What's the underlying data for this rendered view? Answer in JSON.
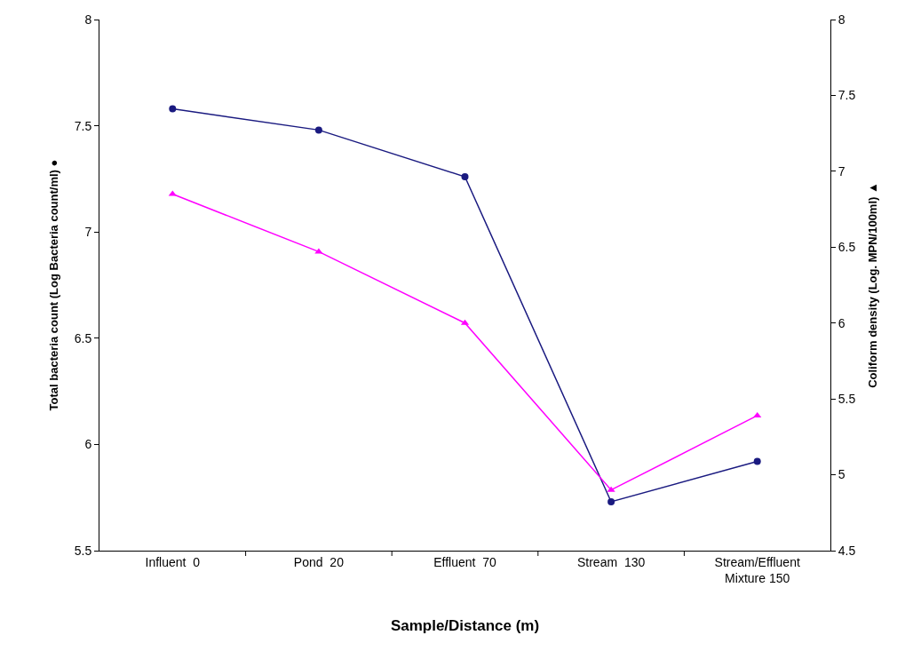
{
  "chart_data": {
    "type": "line",
    "categories": [
      "Influent  0",
      "Pond  20",
      "Effluent  70",
      "Stream  130",
      "Stream/Effluent\nMixture 150"
    ],
    "series": [
      {
        "color": "#1a1a80",
        "values": [
          7.58,
          7.48,
          7.26,
          5.73,
          5.92
        ],
        "marker": "circle"
      },
      {
        "color": "#ff00ff",
        "values": [
          6.85,
          6.47,
          6.0,
          4.9,
          5.39
        ],
        "marker": "triangle",
        "axis": "y2"
      }
    ],
    "xlabel": "Sample/Distance (m)",
    "ylabel": "Total bacteria count (Log Bacteria count/ml) ●",
    "y2label": "Coliform density (Log. MPN/100ml) ▲",
    "ylim": [
      5.5,
      8
    ],
    "yticks": [
      5.5,
      6,
      6.5,
      7,
      7.5,
      8
    ],
    "y2lim": [
      4.5,
      8
    ],
    "y2ticks": [
      4.5,
      5,
      5.5,
      6,
      6.5,
      7,
      7.5,
      8
    ],
    "grid": false,
    "line_style": "solid"
  }
}
